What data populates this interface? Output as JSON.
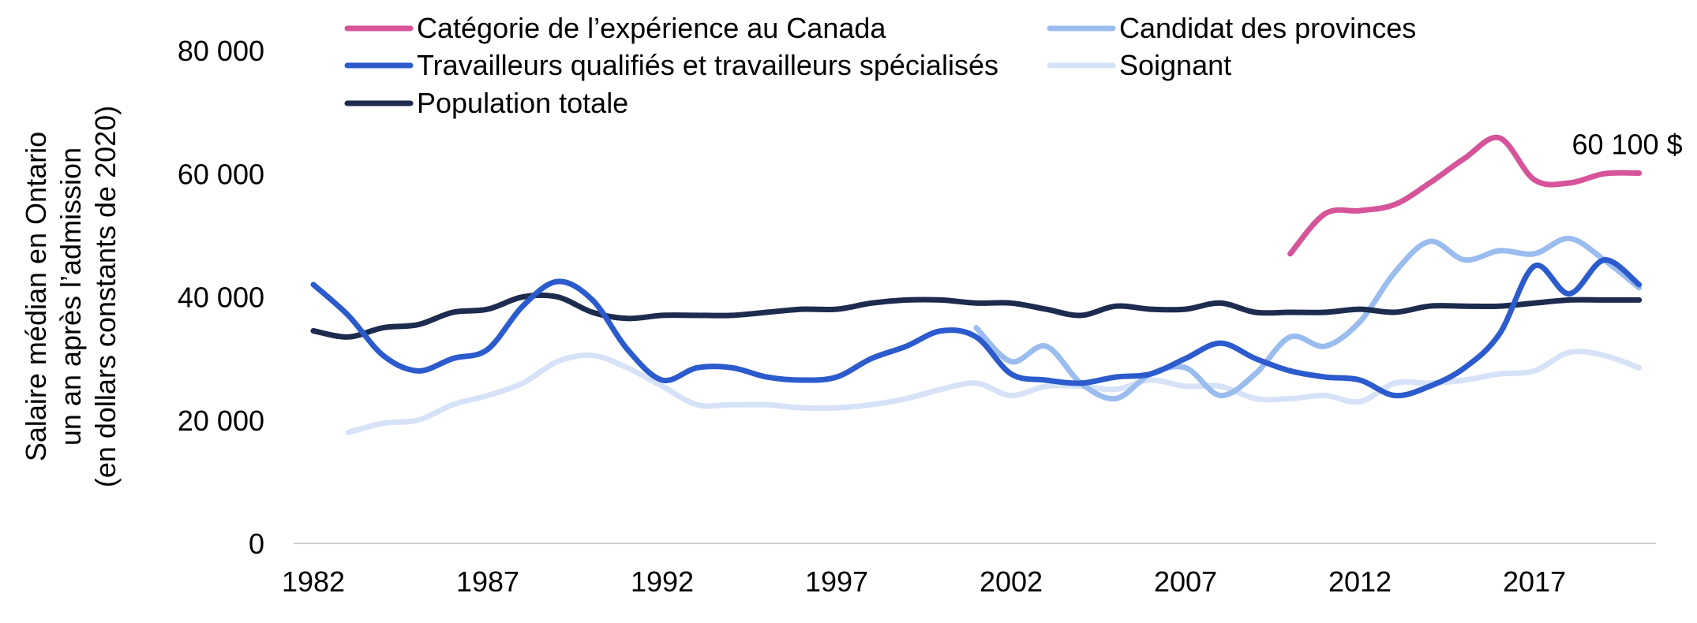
{
  "chart_data": {
    "type": "line",
    "ylabel_lines": [
      "Salaire médian en Ontario",
      "un an après l’admission",
      "(en dollars constants de 2020)"
    ],
    "ylim": [
      0,
      80000
    ],
    "xlim": [
      1982,
      2020
    ],
    "y_ticks": [
      {
        "value": 0,
        "label": "0"
      },
      {
        "value": 20000,
        "label": "20 000"
      },
      {
        "value": 40000,
        "label": "40 000"
      },
      {
        "value": 60000,
        "label": "60 000"
      },
      {
        "value": 80000,
        "label": "80 000"
      }
    ],
    "x_ticks": [
      {
        "value": 1982,
        "label": "1982"
      },
      {
        "value": 1987,
        "label": "1987"
      },
      {
        "value": 1992,
        "label": "1992"
      },
      {
        "value": 1997,
        "label": "1997"
      },
      {
        "value": 2002,
        "label": "2002"
      },
      {
        "value": 2007,
        "label": "2007"
      },
      {
        "value": 2012,
        "label": "2012"
      },
      {
        "value": 2017,
        "label": "2017"
      }
    ],
    "grid": false,
    "legend_position": "top",
    "series": [
      {
        "name": "Catégorie de l’expérience au Canada",
        "color": "#d6549a",
        "x": [
          2010,
          2011,
          2012,
          2013,
          2014,
          2015,
          2016,
          2017,
          2018,
          2019,
          2020
        ],
        "values": [
          47000,
          53500,
          54000,
          55000,
          58500,
          62500,
          65800,
          59000,
          58500,
          60000,
          60100
        ]
      },
      {
        "name": "Candidat des provinces",
        "color": "#9bbcee",
        "x": [
          2001,
          2002,
          2003,
          2004,
          2005,
          2006,
          2007,
          2008,
          2009,
          2010,
          2011,
          2012,
          2013,
          2014,
          2015,
          2016,
          2017,
          2018,
          2019,
          2020
        ],
        "values": [
          35000,
          29500,
          32000,
          26000,
          23500,
          27500,
          28500,
          24000,
          27500,
          33500,
          32000,
          36000,
          44000,
          49000,
          46000,
          47500,
          47000,
          49500,
          46000,
          41500
        ]
      },
      {
        "name": "Travailleurs qualifiés et travailleurs spécialisés",
        "color": "#2b5bcc",
        "x": [
          1982,
          1983,
          1984,
          1985,
          1986,
          1987,
          1988,
          1989,
          1990,
          1991,
          1992,
          1993,
          1994,
          1995,
          1996,
          1997,
          1998,
          1999,
          2000,
          2001,
          2002,
          2003,
          2004,
          2005,
          2006,
          2007,
          2008,
          2009,
          2010,
          2011,
          2012,
          2013,
          2014,
          2015,
          2016,
          2017,
          2018,
          2019,
          2020
        ],
        "values": [
          42000,
          37000,
          30500,
          28000,
          30000,
          31500,
          38500,
          42500,
          39500,
          31500,
          26500,
          28500,
          28500,
          27000,
          26500,
          27000,
          30000,
          32000,
          34500,
          33500,
          27500,
          26500,
          26000,
          27000,
          27500,
          30000,
          32500,
          30000,
          28000,
          27000,
          26500,
          24000,
          25500,
          28500,
          34000,
          45000,
          40500,
          46000,
          42000
        ]
      },
      {
        "name": "Soignant",
        "color": "#d6e2f7",
        "x": [
          1983,
          1984,
          1985,
          1986,
          1987,
          1988,
          1989,
          1990,
          1991,
          1992,
          1993,
          1994,
          1995,
          1996,
          1997,
          1998,
          1999,
          2000,
          2001,
          2002,
          2003,
          2004,
          2005,
          2006,
          2007,
          2008,
          2009,
          2010,
          2011,
          2012,
          2013,
          2014,
          2015,
          2016,
          2017,
          2018,
          2019,
          2020
        ],
        "values": [
          18000,
          19500,
          20000,
          22500,
          24000,
          26000,
          29500,
          30500,
          28500,
          25500,
          22500,
          22500,
          22500,
          22000,
          22000,
          22500,
          23500,
          25000,
          26000,
          24000,
          25500,
          25500,
          25000,
          26500,
          25500,
          25500,
          23500,
          23500,
          24000,
          23000,
          26000,
          26000,
          26500,
          27500,
          28000,
          31000,
          30500,
          28500
        ]
      },
      {
        "name": "Population totale",
        "color": "#1c2b4e",
        "x": [
          1982,
          1983,
          1984,
          1985,
          1986,
          1987,
          1988,
          1989,
          1990,
          1991,
          1992,
          1993,
          1994,
          1995,
          1996,
          1997,
          1998,
          1999,
          2000,
          2001,
          2002,
          2003,
          2004,
          2005,
          2006,
          2007,
          2008,
          2009,
          2010,
          2011,
          2012,
          2013,
          2014,
          2015,
          2016,
          2017,
          2018,
          2019,
          2020
        ],
        "values": [
          34500,
          33500,
          35000,
          35500,
          37500,
          38000,
          40000,
          40000,
          37500,
          36500,
          37000,
          37000,
          37000,
          37500,
          38000,
          38000,
          39000,
          39500,
          39500,
          39000,
          39000,
          38000,
          37000,
          38500,
          38000,
          38000,
          39000,
          37500,
          37500,
          37500,
          38000,
          37500,
          38500,
          38500,
          38500,
          39000,
          39500,
          39500,
          39500
        ]
      }
    ],
    "legend_columns": [
      [
        "Catégorie de l’expérience au Canada",
        "Travailleurs qualifiés et travailleurs spécialisés",
        "Population totale"
      ],
      [
        "Candidat des provinces",
        "Soignant"
      ]
    ],
    "annotations": [
      {
        "series": "Catégorie de l’expérience au Canada",
        "x": 2020,
        "text": "60 100 $"
      }
    ]
  }
}
